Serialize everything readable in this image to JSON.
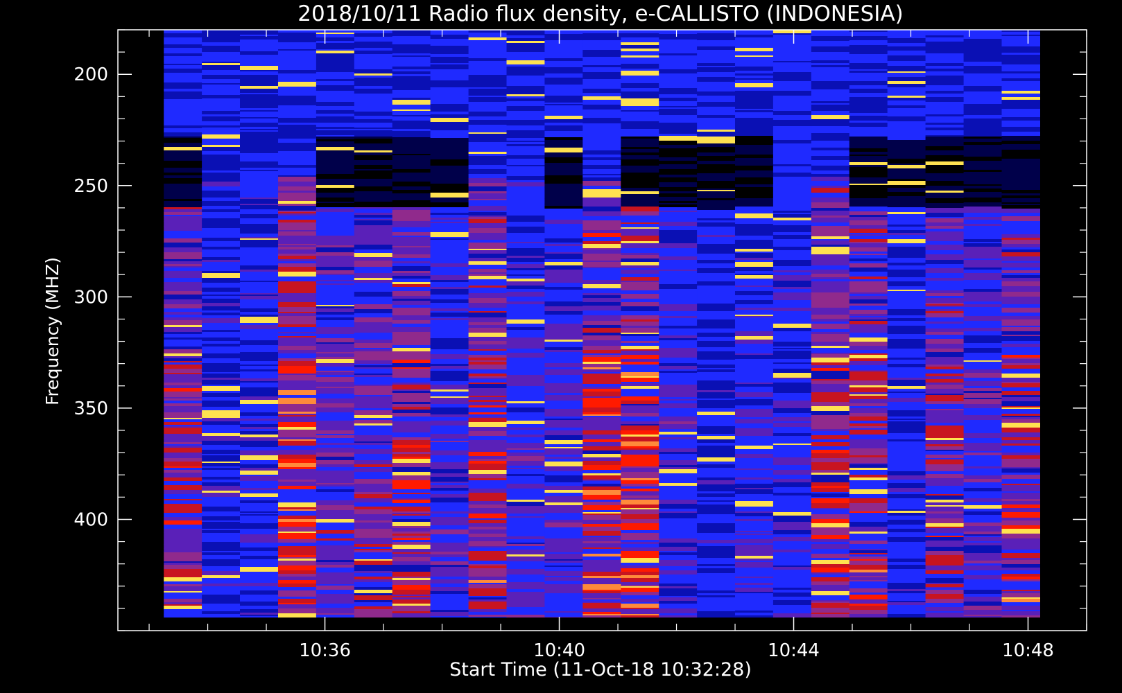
{
  "chart_data": {
    "type": "heatmap",
    "title": "2018/10/11  Radio flux density, e-CALLISTO (INDONESIA)",
    "xlabel": "Start Time (11-Oct-18 10:32:28)",
    "ylabel": "Frequency (MHZ)",
    "x_start_minutes": 32.4667,
    "x_start_label": "10:32:28",
    "x_ticks": [
      {
        "label": "10:36",
        "minutes": 36
      },
      {
        "label": "10:40",
        "minutes": 40
      },
      {
        "label": "10:44",
        "minutes": 44
      },
      {
        "label": "10:48",
        "minutes": 48
      }
    ],
    "xlim_minutes": [
      32.4667,
      49.0
    ],
    "y_ticks": [
      200,
      250,
      300,
      350,
      400
    ],
    "ylim": [
      180,
      450
    ],
    "y_inverted": true,
    "data_time_range_minutes": [
      33.25,
      48.2
    ],
    "data_freq_range_mhz": [
      180,
      444
    ],
    "n_spectrum_columns": 23,
    "colormap": [
      "#000000",
      "#00004a",
      "#0a10b4",
      "#1f2aff",
      "#5a20b8",
      "#902a8c",
      "#c81420",
      "#ff1a00",
      "#ff8a3a",
      "#ffe250"
    ],
    "grid": false,
    "legend": "none"
  }
}
